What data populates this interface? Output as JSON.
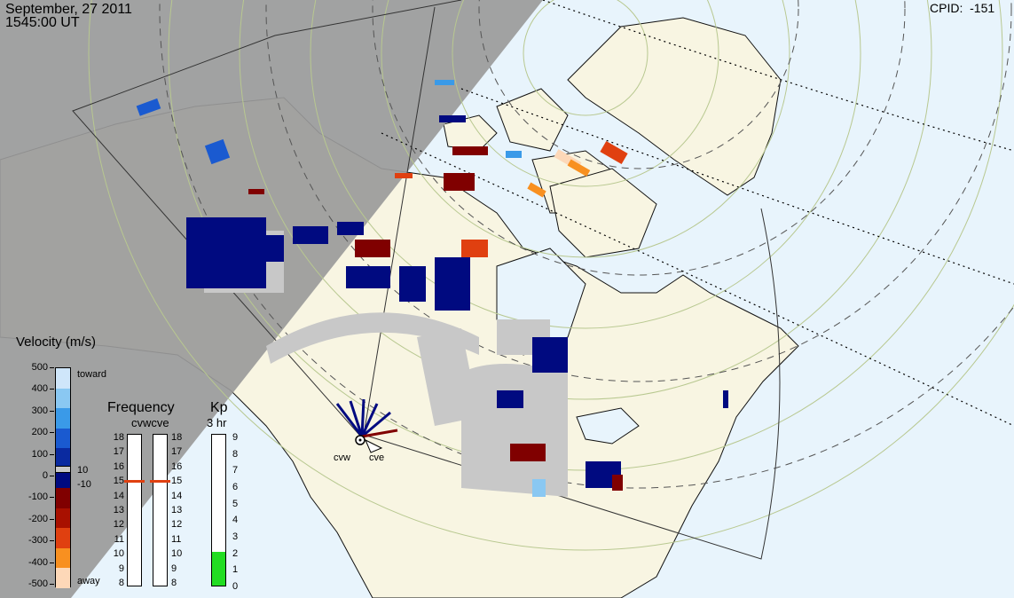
{
  "header": {
    "date": "September, 27 2011",
    "time": "1545:00 UT",
    "cpid_label": "CPID:",
    "cpid_value": "-151"
  },
  "map": {
    "radars": [
      "cvw",
      "cve"
    ],
    "colors": {
      "background": "#e8f4fc",
      "land": "#f8f5e2",
      "night_shade": "#9a9a9a",
      "ground_scatter": "#c8c8c8"
    }
  },
  "velocity_legend": {
    "title": "Velocity (m/s)",
    "ticks": [
      "500",
      "400",
      "300",
      "200",
      "100",
      "0",
      "-100",
      "-200",
      "-300",
      "-400",
      "-500"
    ],
    "toward_label": "toward",
    "away_label": "away",
    "gs_upper": "10",
    "gs_lower": "-10",
    "colors": [
      "#cfe6fa",
      "#8ac8f2",
      "#3a9ae8",
      "#1a5ad0",
      "#0a2aa0",
      "#000a80",
      "#800000",
      "#a81000",
      "#e04010",
      "#f89020",
      "#fdd8b8"
    ]
  },
  "frequency_panel": {
    "title": "Frequency",
    "subtitle": "cvwcve",
    "left_ticks": [
      "18",
      "17",
      "16",
      "15",
      "14",
      "13",
      "12",
      "11",
      "10",
      "9",
      "8"
    ],
    "right_ticks": [
      "18",
      "17",
      "16",
      "15",
      "14",
      "13",
      "12",
      "11",
      "10",
      "9",
      "8"
    ],
    "cvw_mhz": 15,
    "cve_mhz": 15,
    "range_mhz": [
      8,
      18
    ]
  },
  "kp_panel": {
    "title": "Kp",
    "subtitle": "3 hr",
    "ticks": [
      "9",
      "8",
      "7",
      "6",
      "5",
      "4",
      "3",
      "2",
      "1",
      "0"
    ],
    "value": 2,
    "bar_color": "#22dd22"
  }
}
